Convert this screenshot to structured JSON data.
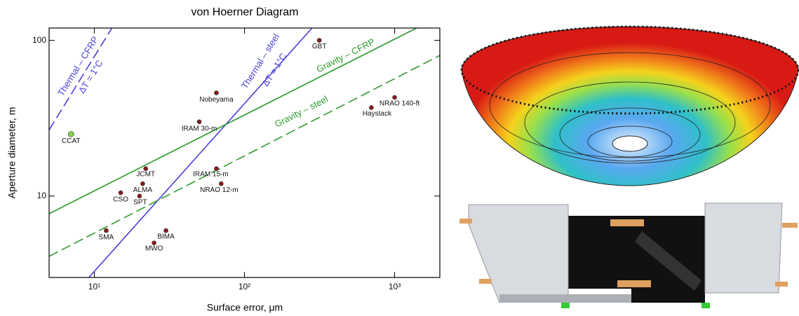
{
  "chart_data": {
    "type": "scatter",
    "title": "von Hoerner Diagram",
    "xlabel": "Surface error, μm",
    "ylabel": "Aperture diameter, m",
    "xscale": "log",
    "yscale": "log",
    "xlim": [
      5,
      2000
    ],
    "ylim": [
      3,
      120
    ],
    "xticks": [
      {
        "value": 10,
        "label": "10¹"
      },
      {
        "value": 100,
        "label": "10²"
      },
      {
        "value": 1000,
        "label": "10³"
      }
    ],
    "yticks": [
      10,
      100
    ],
    "points": {
      "labels": [
        "CCAT",
        "GBT",
        "Nobeyama",
        "IRAM 30-m",
        "NRAO 140-ft",
        "Haystack",
        "JCMT",
        "ALMA",
        "CSO",
        "SPT",
        "IRAM 15-m",
        "NRAO 12-m",
        "SMA",
        "BIMA",
        "MWO"
      ],
      "x": [
        7,
        315,
        65,
        50,
        1000,
        700,
        22,
        21,
        15,
        20,
        65,
        70,
        12,
        30,
        25
      ],
      "y": [
        25,
        100,
        46,
        30,
        43,
        37,
        15,
        12,
        10.5,
        10,
        15,
        12,
        6,
        6,
        5
      ],
      "colors": [
        "#7fd14a",
        "#8b1a1a",
        "#8b1a1a",
        "#8b1a1a",
        "#8b1a1a",
        "#8b1a1a",
        "#8b1a1a",
        "#8b1a1a",
        "#8b1a1a",
        "#8b1a1a",
        "#8b1a1a",
        "#8b1a1a",
        "#8b1a1a",
        "#8b1a1a",
        "#8b1a1a"
      ]
    },
    "lines": [
      {
        "name": "Thermal – CFRP",
        "annotation": "ΔT = 1°C",
        "color": "#4a3fd6",
        "dashed": true,
        "x": [
          5,
          13.1
        ],
        "y": [
          26.6,
          120
        ]
      },
      {
        "name": "Thermal – steel",
        "annotation": "ΔT = 1°C",
        "color": "#4a3fd6",
        "dashed": false,
        "x": [
          9.2,
          282
        ],
        "y": [
          3,
          120
        ]
      },
      {
        "name": "Gravity – CFRP",
        "color": "#2e9a2e",
        "dashed": false,
        "x": [
          5,
          1400
        ],
        "y": [
          7.7,
          120
        ]
      },
      {
        "name": "Gravity – steel",
        "color": "#2e9a2e",
        "dashed": true,
        "x": [
          5,
          2000
        ],
        "y": [
          4.1,
          80
        ]
      }
    ]
  }
}
